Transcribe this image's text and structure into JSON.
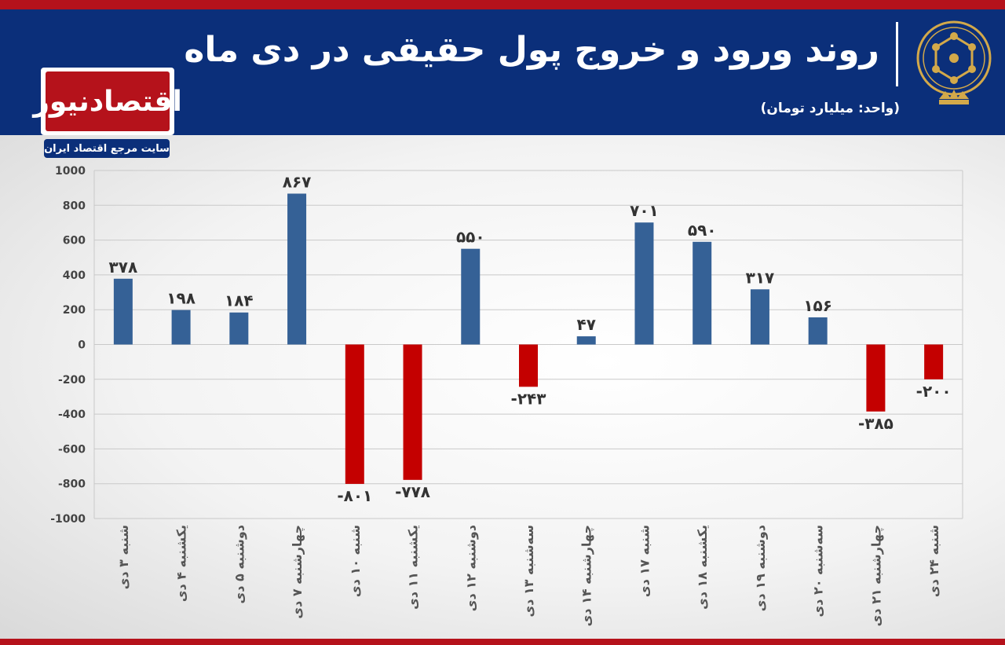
{
  "header": {
    "title": "روند ورود و خروج پول حقیقی در دی ماه",
    "unit": "(واحد: میلیارد تومان)"
  },
  "logo": {
    "name": "اقتصادنیوز",
    "tagline": "سایت مرجع اقتصاد ایران"
  },
  "colors": {
    "header_bg": "#0b2f7a",
    "accent": "#b5121b",
    "positive_bar": "#356196",
    "negative_bar": "#c40000"
  },
  "chart_data": {
    "type": "bar",
    "title": "روند ورود و خروج پول حقیقی در دی ماه",
    "ylabel": "",
    "xlabel": "",
    "ylim": [
      -1000,
      1000
    ],
    "yticks": [
      1000,
      800,
      600,
      400,
      200,
      0,
      -200,
      -400,
      -600,
      -800,
      -1000
    ],
    "ytick_labels": [
      "1000",
      "800",
      "600",
      "400",
      "200",
      "0",
      "-200",
      "-400",
      "-600",
      "-800",
      "-1000"
    ],
    "grid": true,
    "categories": [
      "شنبه ۳ دی",
      "یکشنبه ۴ دی",
      "دوشنبه ۵ دی",
      "چهارشنبه ۷ دی",
      "شنبه ۱۰ دی",
      "یکشنبه ۱۱ دی",
      "دوشنبه ۱۲ دی",
      "سه‌شنبه ۱۳ دی",
      "چهارشنبه ۱۴ دی",
      "شنبه ۱۷ دی",
      "یکشنبه ۱۸ دی",
      "دوشنبه ۱۹ دی",
      "سه‌شنبه ۲۰ دی",
      "چهارشنبه ۲۱ دی",
      "شنبه ۲۴ دی"
    ],
    "values": [
      378,
      198,
      184,
      867,
      -801,
      -778,
      550,
      -243,
      47,
      701,
      590,
      317,
      156,
      -385,
      -200
    ],
    "data_labels": [
      "۳۷۸",
      "۱۹۸",
      "۱۸۴",
      "۸۶۷",
      "-۸۰۱",
      "-۷۷۸",
      "۵۵۰",
      "-۲۴۳",
      "۴۷",
      "۷۰۱",
      "۵۹۰",
      "۳۱۷",
      "۱۵۶",
      "-۳۸۵",
      "-۲۰۰"
    ]
  }
}
